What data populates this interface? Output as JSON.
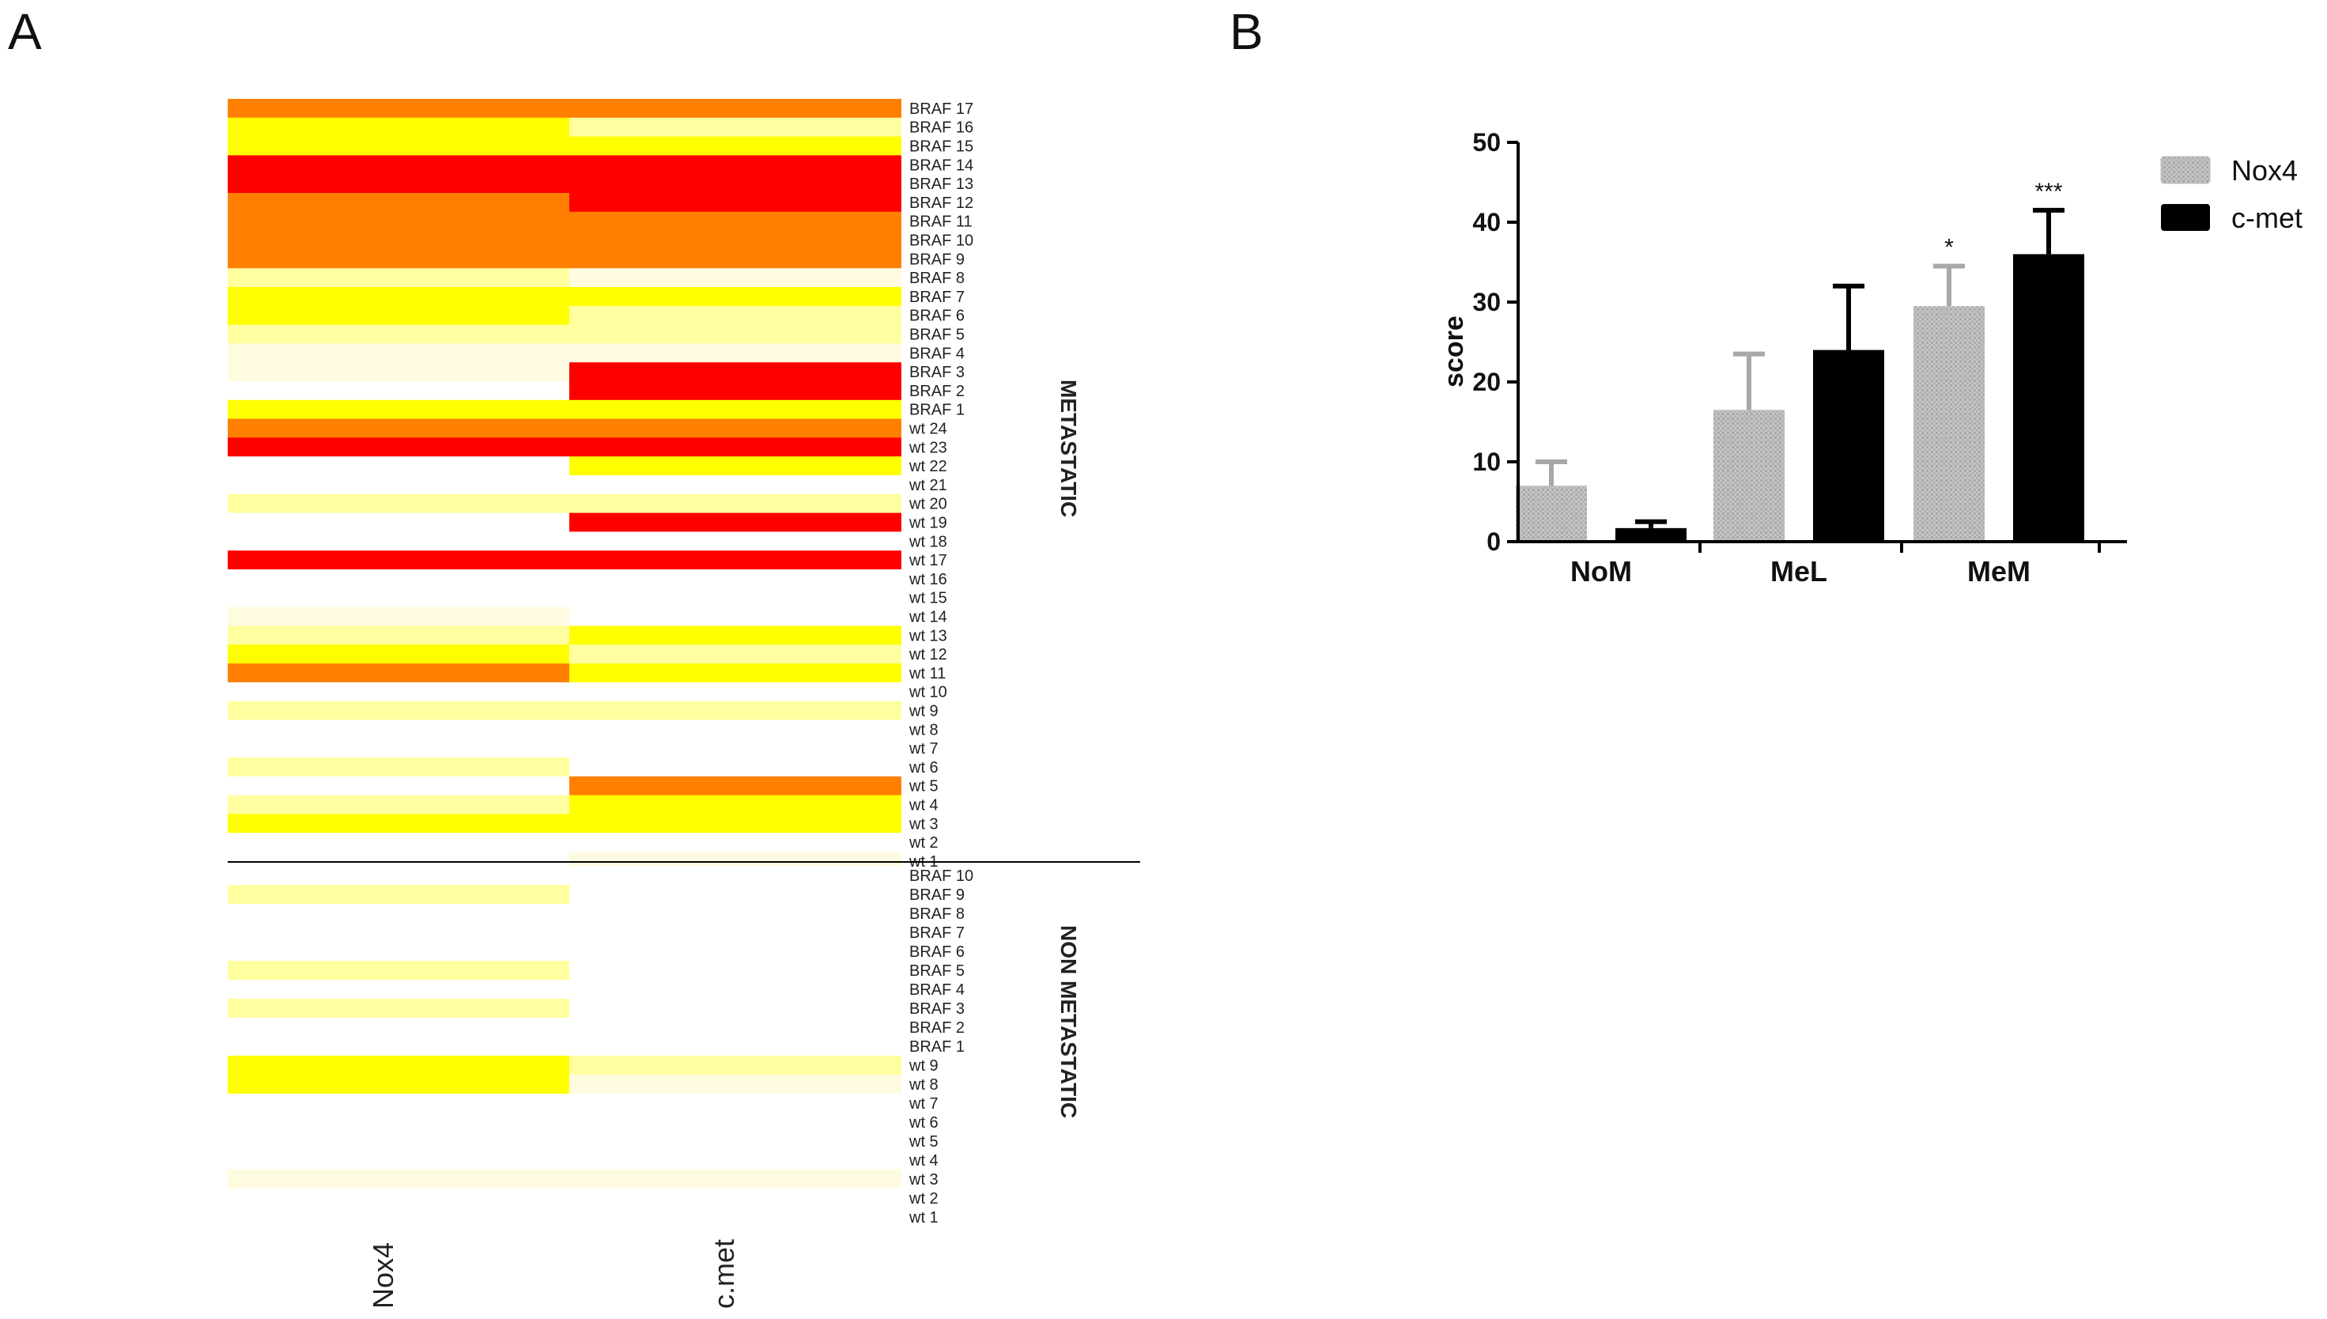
{
  "figure": {
    "panel_a_label": "A",
    "panel_b_label": "B"
  },
  "chart_data": [
    {
      "type": "heatmap",
      "panel": "A",
      "columns": [
        "Nox4",
        "c.met"
      ],
      "groups": [
        "METASTATIC",
        "NON METASTATIC"
      ],
      "level_colors": [
        "#ffffff",
        "#fffbe0",
        "#ffffa0",
        "#ffff00",
        "#ff8000",
        "#ff0000"
      ],
      "level_meaning": "0 = lowest expression (white) … 5 = highest expression (red)",
      "metastatic_rows": [
        {
          "label": "BRAF 17",
          "levels": [
            4,
            4
          ]
        },
        {
          "label": "BRAF 16",
          "levels": [
            3,
            2
          ]
        },
        {
          "label": "BRAF 15",
          "levels": [
            3,
            3
          ]
        },
        {
          "label": "BRAF 14",
          "levels": [
            5,
            5
          ]
        },
        {
          "label": "BRAF 13",
          "levels": [
            5,
            5
          ]
        },
        {
          "label": "BRAF 12",
          "levels": [
            4,
            5
          ]
        },
        {
          "label": "BRAF 11",
          "levels": [
            4,
            4
          ]
        },
        {
          "label": "BRAF 10",
          "levels": [
            4,
            4
          ]
        },
        {
          "label": "BRAF 9",
          "levels": [
            4,
            4
          ]
        },
        {
          "label": "BRAF 8",
          "levels": [
            2,
            1
          ]
        },
        {
          "label": "BRAF 7",
          "levels": [
            3,
            3
          ]
        },
        {
          "label": "BRAF 6",
          "levels": [
            3,
            2
          ]
        },
        {
          "label": "BRAF 5",
          "levels": [
            2,
            2
          ]
        },
        {
          "label": "BRAF 4",
          "levels": [
            1,
            1
          ]
        },
        {
          "label": "BRAF 3",
          "levels": [
            1,
            5
          ]
        },
        {
          "label": "BRAF 2",
          "levels": [
            0,
            5
          ]
        },
        {
          "label": "BRAF 1",
          "levels": [
            3,
            3
          ]
        },
        {
          "label": "wt 24",
          "levels": [
            4,
            4
          ]
        },
        {
          "label": "wt 23",
          "levels": [
            5,
            5
          ]
        },
        {
          "label": "wt 22",
          "levels": [
            0,
            3
          ]
        },
        {
          "label": "wt 21",
          "levels": [
            0,
            0
          ]
        },
        {
          "label": "wt 20",
          "levels": [
            2,
            2
          ]
        },
        {
          "label": "wt 19",
          "levels": [
            0,
            5
          ]
        },
        {
          "label": "wt 18",
          "levels": [
            0,
            0
          ]
        },
        {
          "label": "wt 17",
          "levels": [
            5,
            5
          ]
        },
        {
          "label": "wt 16",
          "levels": [
            0,
            0
          ]
        },
        {
          "label": "wt 15",
          "levels": [
            0,
            0
          ]
        },
        {
          "label": "wt 14",
          "levels": [
            1,
            0
          ]
        },
        {
          "label": "wt 13",
          "levels": [
            2,
            3
          ]
        },
        {
          "label": "wt 12",
          "levels": [
            3,
            2
          ]
        },
        {
          "label": "wt 11",
          "levels": [
            4,
            3
          ]
        },
        {
          "label": "wt 10",
          "levels": [
            0,
            0
          ]
        },
        {
          "label": "wt 9",
          "levels": [
            2,
            2
          ]
        },
        {
          "label": "wt 8",
          "levels": [
            0,
            0
          ]
        },
        {
          "label": "wt 7",
          "levels": [
            0,
            0
          ]
        },
        {
          "label": "wt 6",
          "levels": [
            2,
            0
          ]
        },
        {
          "label": "wt 5",
          "levels": [
            0,
            4
          ]
        },
        {
          "label": "wt 4",
          "levels": [
            2,
            3
          ]
        },
        {
          "label": "wt 3",
          "levels": [
            3,
            3
          ]
        },
        {
          "label": "wt 2",
          "levels": [
            0,
            0
          ]
        },
        {
          "label": "wt 1",
          "levels": [
            0,
            1
          ]
        }
      ],
      "non_metastatic_rows": [
        {
          "label": "BRAF 10",
          "levels": [
            0,
            0
          ]
        },
        {
          "label": "BRAF 9",
          "levels": [
            2,
            0
          ]
        },
        {
          "label": "BRAF 8",
          "levels": [
            0,
            0
          ]
        },
        {
          "label": "BRAF 7",
          "levels": [
            0,
            0
          ]
        },
        {
          "label": "BRAF 6",
          "levels": [
            0,
            0
          ]
        },
        {
          "label": "BRAF 5",
          "levels": [
            2,
            0
          ]
        },
        {
          "label": "BRAF 4",
          "levels": [
            0,
            0
          ]
        },
        {
          "label": "BRAF 3",
          "levels": [
            2,
            0
          ]
        },
        {
          "label": "BRAF 2",
          "levels": [
            0,
            0
          ]
        },
        {
          "label": "BRAF 1",
          "levels": [
            0,
            0
          ]
        },
        {
          "label": "wt 9",
          "levels": [
            3,
            2
          ]
        },
        {
          "label": "wt 8",
          "levels": [
            3,
            1
          ]
        },
        {
          "label": "wt 7",
          "levels": [
            0,
            0
          ]
        },
        {
          "label": "wt 6",
          "levels": [
            0,
            0
          ]
        },
        {
          "label": "wt 5",
          "levels": [
            0,
            0
          ]
        },
        {
          "label": "wt 4",
          "levels": [
            0,
            0
          ]
        },
        {
          "label": "wt 3",
          "levels": [
            1,
            1
          ]
        },
        {
          "label": "wt 2",
          "levels": [
            0,
            0
          ]
        },
        {
          "label": "wt 1",
          "levels": [
            0,
            0
          ]
        }
      ]
    },
    {
      "type": "bar",
      "panel": "B",
      "title": "",
      "categories": [
        "NoM",
        "MeL",
        "MeM"
      ],
      "ylabel": "score",
      "xlabel": "",
      "ylim": [
        0,
        50
      ],
      "yticks": [
        0,
        10,
        20,
        30,
        40,
        50
      ],
      "legend_position": "top-right",
      "series": [
        {
          "name": "Nox4",
          "color": "#bdbdbd",
          "values": [
            7,
            16.5,
            29.5
          ],
          "errors": [
            3,
            7,
            5
          ],
          "significance": [
            "",
            "",
            "*"
          ]
        },
        {
          "name": "c-met",
          "color": "#000000",
          "values": [
            1.7,
            24,
            36
          ],
          "errors": [
            0.8,
            8,
            5.5
          ],
          "significance": [
            "",
            "",
            "***"
          ]
        }
      ]
    }
  ]
}
